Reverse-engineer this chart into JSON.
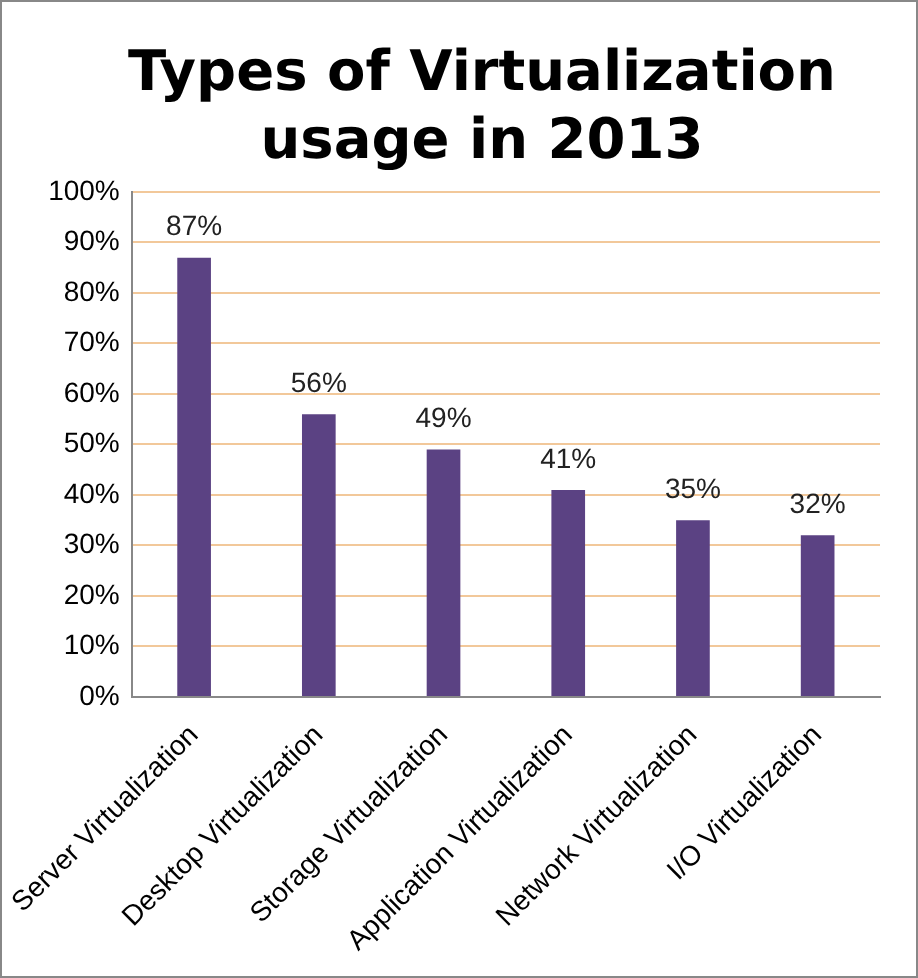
{
  "chart_data": {
    "type": "bar",
    "title": "Types of Virtualization usage in 2013",
    "categories": [
      "Server Virtualization",
      "Desktop Virtualization",
      "Storage Virtualization",
      "Application Virtualization",
      "Network Virtualization",
      "I/O Virtualization"
    ],
    "values": [
      87,
      56,
      49,
      41,
      35,
      32
    ],
    "value_labels": [
      "87%",
      "56%",
      "49%",
      "41%",
      "35%",
      "32%"
    ],
    "color": "#5b4283",
    "ylim": [
      0,
      100
    ],
    "yticks": [
      {
        "value": 0,
        "label": "0%"
      },
      {
        "value": 10,
        "label": "10%"
      },
      {
        "value": 20,
        "label": "20%"
      },
      {
        "value": 30,
        "label": "30%"
      },
      {
        "value": 40,
        "label": "40%"
      },
      {
        "value": 50,
        "label": "50%"
      },
      {
        "value": 60,
        "label": "60%"
      },
      {
        "value": 70,
        "label": "70%"
      },
      {
        "value": 80,
        "label": "80%"
      },
      {
        "value": 90,
        "label": "90%"
      },
      {
        "value": 100,
        "label": "100%"
      }
    ],
    "grid": "y"
  }
}
